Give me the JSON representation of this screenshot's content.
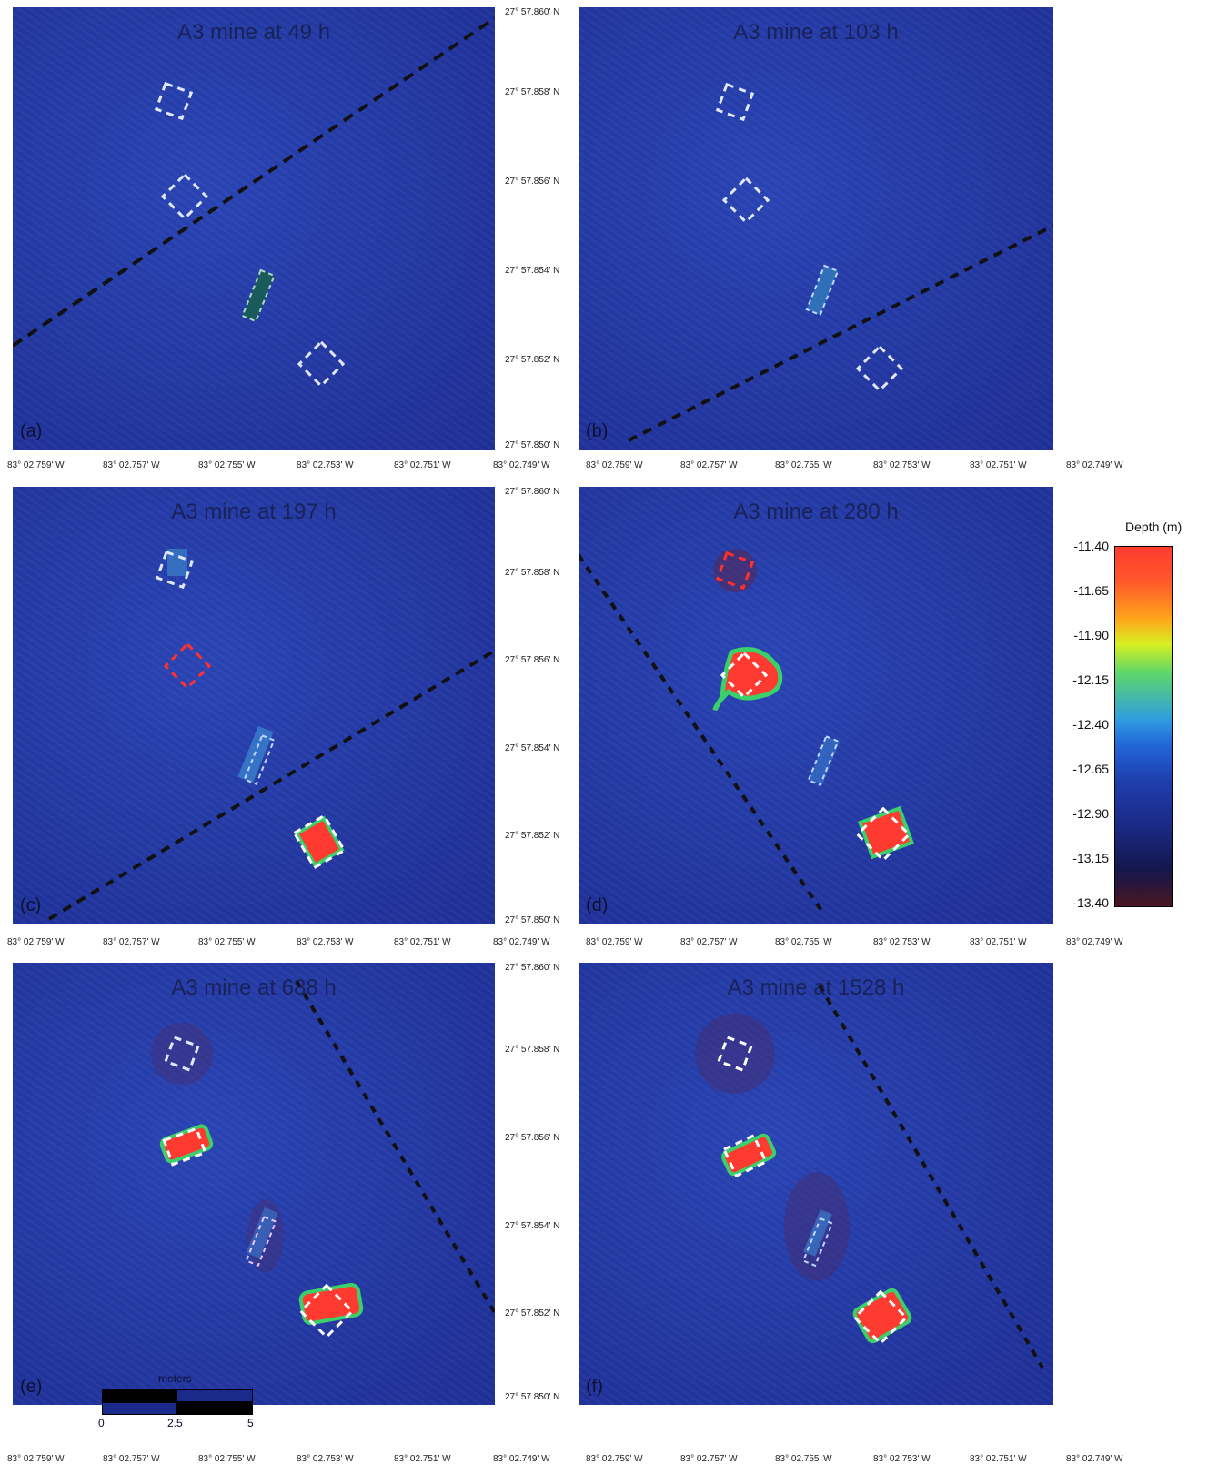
{
  "panels": [
    {
      "id": "a",
      "letter": "(a)",
      "title": "A3 mine at 49 h"
    },
    {
      "id": "b",
      "letter": "(b)",
      "title": "A3 mine at 103 h"
    },
    {
      "id": "c",
      "letter": "(c)",
      "title": "A3 mine at 197 h"
    },
    {
      "id": "d",
      "letter": "(d)",
      "title": "A3 mine at 280 h"
    },
    {
      "id": "e",
      "letter": "(e)",
      "title": "A3 mine at 688 h"
    },
    {
      "id": "f",
      "letter": "(f)",
      "title": "A3 mine at 1528 h"
    }
  ],
  "lon_ticks": [
    "83° 02.759' W",
    "83° 02.757' W",
    "83° 02.755' W",
    "83° 02.753' W",
    "83° 02.751' W",
    "83° 02.749' W"
  ],
  "lat_ticks": [
    "27° 57.860' N",
    "27° 57.858' N",
    "27° 57.856' N",
    "27° 57.854' N",
    "27° 57.852' N",
    "27° 57.850' N"
  ],
  "colorbar": {
    "title": "Depth (m)",
    "ticks": [
      "-11.40",
      "-11.65",
      "-11.90",
      "-12.15",
      "-12.40",
      "-12.65",
      "-12.90",
      "-13.15",
      "-13.40"
    ]
  },
  "scalebar": {
    "unit": "meters",
    "labels": [
      "0",
      "2.5",
      "5"
    ]
  },
  "colors": {
    "water": "#2438a6",
    "scour": "#ff3a30",
    "burial_marker": "#ffffff",
    "accretion_marker": "#ff3030"
  }
}
